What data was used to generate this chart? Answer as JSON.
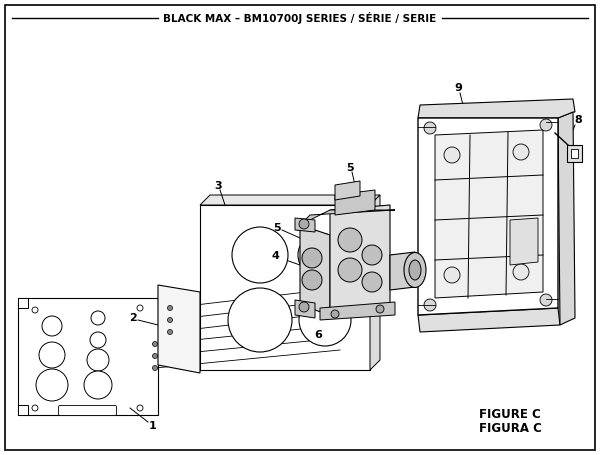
{
  "title": "BLACK MAX – BM10700J SERIES / SÉRIE / SERIE",
  "figure_label": "FIGURE C",
  "figura_label": "FIGURA C",
  "bg_color": "#ffffff",
  "line_color": "#000000",
  "title_fontsize": 7.5,
  "label_fontsize": 8.0,
  "figure_label_fontsize": 8.5
}
